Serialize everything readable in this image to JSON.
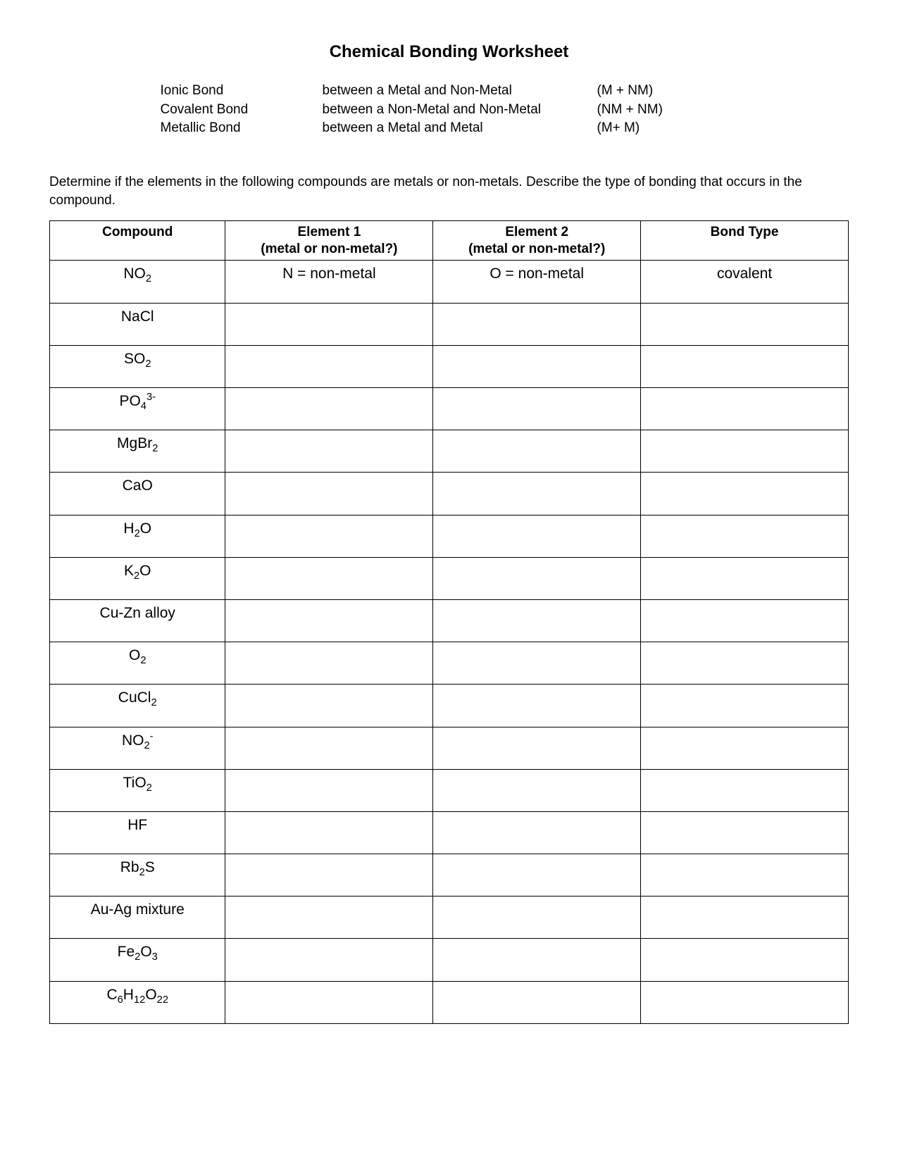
{
  "title": "Chemical Bonding Worksheet",
  "legend": {
    "rows": [
      {
        "type": "Ionic Bond",
        "desc": "between a Metal and Non-Metal",
        "short": "(M + NM)"
      },
      {
        "type": "Covalent Bond",
        "desc": "between a Non-Metal and Non-Metal",
        "short": "(NM + NM)"
      },
      {
        "type": "Metallic Bond",
        "desc": "between a Metal and Metal",
        "short": "(M+ M)"
      }
    ]
  },
  "instructions": "Determine if the elements in the following compounds are metals or non-metals.  Describe the type of bonding that occurs in the compound.",
  "table": {
    "headers": {
      "compound": "Compound",
      "element1_line1": "Element 1",
      "element1_line2": "(metal or non-metal?)",
      "element2_line1": "Element 2",
      "element2_line2": "(metal or non-metal?)",
      "bondtype": "Bond Type"
    },
    "column_widths_pct": [
      22,
      26,
      26,
      26
    ],
    "rows": [
      {
        "compound_html": "NO<sub>2</sub>",
        "e1": "N = non-metal",
        "e2": "O = non-metal",
        "bond": "covalent"
      },
      {
        "compound_html": "NaCl",
        "e1": "",
        "e2": "",
        "bond": ""
      },
      {
        "compound_html": "SO<sub>2</sub>",
        "e1": "",
        "e2": "",
        "bond": ""
      },
      {
        "compound_html": "PO<sub>4</sub><sup>3-</sup>",
        "e1": "",
        "e2": "",
        "bond": ""
      },
      {
        "compound_html": "MgBr<sub>2</sub>",
        "e1": "",
        "e2": "",
        "bond": ""
      },
      {
        "compound_html": "CaO",
        "e1": "",
        "e2": "",
        "bond": ""
      },
      {
        "compound_html": "H<sub>2</sub>O",
        "e1": "",
        "e2": "",
        "bond": ""
      },
      {
        "compound_html": "K<sub>2</sub>O",
        "e1": "",
        "e2": "",
        "bond": ""
      },
      {
        "compound_html": "Cu-Zn alloy",
        "e1": "",
        "e2": "",
        "bond": ""
      },
      {
        "compound_html": "O<sub>2</sub>",
        "e1": "",
        "e2": "",
        "bond": ""
      },
      {
        "compound_html": "CuCl<sub>2</sub>",
        "e1": "",
        "e2": "",
        "bond": ""
      },
      {
        "compound_html": "NO<sub>2</sub><sup>-</sup>",
        "e1": "",
        "e2": "",
        "bond": ""
      },
      {
        "compound_html": "TiO<sub>2</sub>",
        "e1": "",
        "e2": "",
        "bond": ""
      },
      {
        "compound_html": "HF",
        "e1": "",
        "e2": "",
        "bond": ""
      },
      {
        "compound_html": "Rb<sub>2</sub>S",
        "e1": "",
        "e2": "",
        "bond": ""
      },
      {
        "compound_html": "Au-Ag mixture",
        "e1": "",
        "e2": "",
        "bond": ""
      },
      {
        "compound_html": "Fe<sub>2</sub>O<sub>3</sub>",
        "e1": "",
        "e2": "",
        "bond": ""
      },
      {
        "compound_html": "C<sub>6</sub>H<sub>12</sub>O<sub>22</sub>",
        "e1": "",
        "e2": "",
        "bond": ""
      }
    ]
  },
  "colors": {
    "text": "#000000",
    "background": "#ffffff",
    "border": "#000000"
  }
}
